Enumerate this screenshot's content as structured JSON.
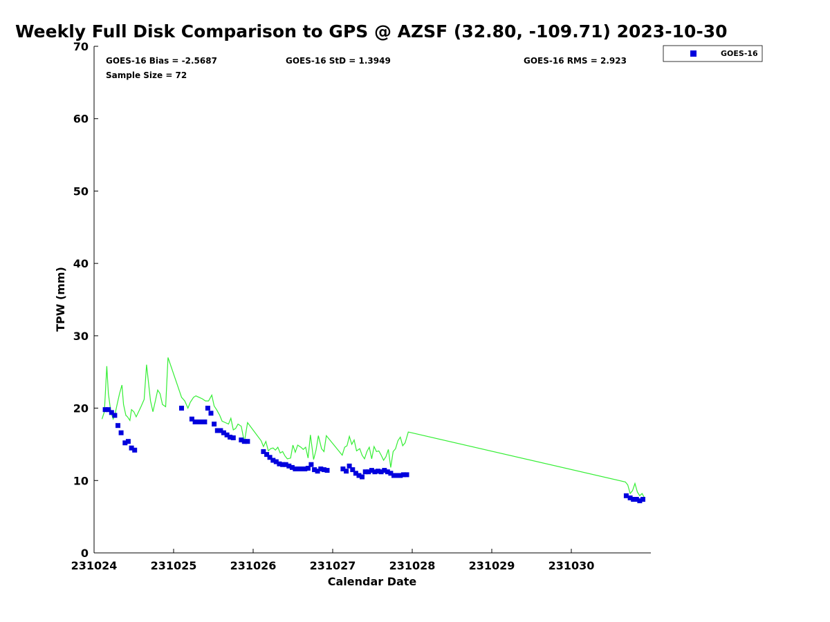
{
  "chart_data": {
    "type": "scatter",
    "title": "Weekly Full Disk Comparison to GPS @ AZSF (32.80, -109.71) 2023-10-30",
    "xlabel": "Calendar Date",
    "ylabel": "TPW (mm)",
    "xlim": [
      0,
      7
    ],
    "ylim": [
      0,
      70
    ],
    "x_ticks": [
      0,
      1,
      2,
      3,
      4,
      5,
      6
    ],
    "x_tick_labels": [
      "231024",
      "231025",
      "231026",
      "231027",
      "231028",
      "231029",
      "231030"
    ],
    "y_ticks": [
      0,
      10,
      20,
      30,
      40,
      50,
      60,
      70
    ],
    "y_tick_labels": [
      "0",
      "10",
      "20",
      "30",
      "40",
      "50",
      "60",
      "70"
    ],
    "legend": {
      "position": "top-right-outside",
      "entries": [
        "GOES-16"
      ]
    },
    "stats": {
      "bias": "GOES-16 Bias = -2.5687",
      "std": "GOES-16 StD = 1.3949",
      "rms": "GOES-16 RMS = 2.923",
      "sample": "Sample Size = 72"
    },
    "colors": {
      "goes": "#0000dd",
      "gps": "#33ee33",
      "axis": "#000000"
    },
    "series": [
      {
        "name": "GOES-16",
        "kind": "scatter",
        "x": [
          0.14,
          0.18,
          0.22,
          0.26,
          0.3,
          0.34,
          0.39,
          0.43,
          0.47,
          0.51,
          1.1,
          1.23,
          1.27,
          1.31,
          1.35,
          1.39,
          1.43,
          1.47,
          1.51,
          1.55,
          1.59,
          1.63,
          1.67,
          1.71,
          1.75,
          1.85,
          1.89,
          1.93,
          2.13,
          2.17,
          2.21,
          2.25,
          2.29,
          2.33,
          2.37,
          2.41,
          2.45,
          2.49,
          2.53,
          2.57,
          2.61,
          2.65,
          2.69,
          2.73,
          2.77,
          2.81,
          2.85,
          2.89,
          2.93,
          3.13,
          3.17,
          3.21,
          3.25,
          3.29,
          3.33,
          3.37,
          3.41,
          3.45,
          3.49,
          3.53,
          3.57,
          3.61,
          3.65,
          3.69,
          3.73,
          3.77,
          3.81,
          3.85,
          3.89,
          3.93,
          6.69,
          6.74,
          6.78,
          6.82,
          6.86,
          6.9
        ],
        "y": [
          19.8,
          19.8,
          19.4,
          19.0,
          17.6,
          16.6,
          15.2,
          15.4,
          14.5,
          14.2,
          20.0,
          18.5,
          18.1,
          18.1,
          18.1,
          18.1,
          20.0,
          19.3,
          17.8,
          16.9,
          16.9,
          16.6,
          16.3,
          16.0,
          15.9,
          15.6,
          15.4,
          15.4,
          14.0,
          13.6,
          13.2,
          12.8,
          12.6,
          12.3,
          12.2,
          12.2,
          12.0,
          11.8,
          11.6,
          11.6,
          11.6,
          11.6,
          11.7,
          12.2,
          11.5,
          11.3,
          11.6,
          11.5,
          11.4,
          11.6,
          11.3,
          12.0,
          11.5,
          11.0,
          10.7,
          10.5,
          11.2,
          11.2,
          11.4,
          11.2,
          11.3,
          11.2,
          11.4,
          11.2,
          11.0,
          10.7,
          10.7,
          10.7,
          10.8,
          10.8,
          7.9,
          7.6,
          7.4,
          7.4,
          7.2,
          7.4
        ]
      },
      {
        "name": "GPS",
        "kind": "line",
        "x": [
          0.1,
          0.13,
          0.16,
          0.18,
          0.21,
          0.24,
          0.26,
          0.29,
          0.32,
          0.35,
          0.37,
          0.4,
          0.42,
          0.45,
          0.47,
          0.5,
          0.53,
          0.56,
          0.59,
          0.63,
          0.66,
          0.69,
          0.71,
          0.74,
          0.77,
          0.8,
          0.83,
          0.86,
          0.9,
          0.93,
          1.1,
          1.14,
          1.18,
          1.21,
          1.25,
          1.28,
          1.32,
          1.36,
          1.4,
          1.44,
          1.48,
          1.51,
          1.54,
          1.58,
          1.61,
          1.65,
          1.69,
          1.72,
          1.75,
          1.78,
          1.81,
          1.85,
          1.89,
          1.93,
          2.1,
          2.13,
          2.16,
          2.19,
          2.22,
          2.25,
          2.28,
          2.31,
          2.34,
          2.37,
          2.4,
          2.43,
          2.47,
          2.5,
          2.53,
          2.56,
          2.6,
          2.63,
          2.66,
          2.69,
          2.72,
          2.76,
          2.79,
          2.82,
          2.86,
          2.89,
          2.92,
          3.12,
          3.15,
          3.18,
          3.21,
          3.24,
          3.27,
          3.3,
          3.34,
          3.37,
          3.4,
          3.43,
          3.46,
          3.49,
          3.52,
          3.55,
          3.58,
          3.61,
          3.64,
          3.67,
          3.7,
          3.73,
          3.76,
          3.79,
          3.82,
          3.85,
          3.88,
          3.91,
          3.95,
          6.68,
          6.71,
          6.74,
          6.77,
          6.8,
          6.83,
          6.86,
          6.89,
          6.92
        ],
        "y": [
          18.5,
          19.5,
          25.8,
          22.0,
          19.5,
          18.5,
          19.0,
          20.5,
          22.0,
          23.2,
          20.5,
          19.0,
          18.8,
          18.3,
          19.8,
          19.5,
          18.8,
          19.5,
          20.2,
          21.2,
          26.0,
          23.0,
          21.0,
          19.5,
          21.0,
          22.5,
          22.0,
          20.5,
          20.2,
          27.0,
          21.5,
          21.0,
          20.0,
          20.8,
          21.5,
          21.7,
          21.5,
          21.3,
          21.0,
          21.0,
          21.8,
          20.3,
          19.8,
          19.0,
          18.2,
          18.0,
          17.8,
          18.6,
          17.0,
          17.2,
          17.8,
          17.5,
          15.3,
          18.0,
          15.5,
          14.7,
          15.4,
          14.1,
          14.4,
          14.5,
          14.2,
          14.6,
          13.8,
          14.0,
          13.4,
          13.0,
          13.1,
          14.9,
          13.9,
          14.9,
          14.6,
          14.3,
          14.6,
          13.1,
          16.3,
          12.9,
          14.2,
          16.2,
          14.4,
          14.0,
          16.2,
          13.5,
          14.6,
          14.8,
          16.1,
          15.0,
          15.6,
          14.1,
          14.4,
          13.5,
          13.0,
          14.0,
          14.6,
          13.0,
          14.7,
          14.0,
          14.1,
          13.5,
          12.8,
          13.3,
          14.3,
          11.8,
          14.0,
          14.4,
          15.5,
          16.0,
          14.8,
          15.2,
          16.7,
          9.8,
          9.4,
          8.2,
          8.6,
          9.6,
          8.4,
          7.9,
          8.2,
          7.6
        ]
      }
    ]
  }
}
